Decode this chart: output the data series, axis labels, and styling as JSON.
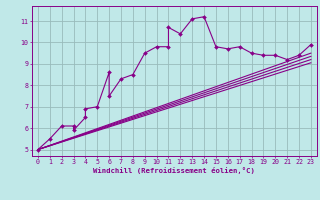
{
  "xlabel": "Windchill (Refroidissement éolien,°C)",
  "xlim": [
    -0.5,
    23.5
  ],
  "ylim": [
    4.7,
    11.7
  ],
  "yticks": [
    5,
    6,
    7,
    8,
    9,
    10,
    11
  ],
  "xticks": [
    0,
    1,
    2,
    3,
    4,
    5,
    6,
    7,
    8,
    9,
    10,
    11,
    12,
    13,
    14,
    15,
    16,
    17,
    18,
    19,
    20,
    21,
    22,
    23
  ],
  "bg_color": "#c0e8e8",
  "line_color": "#880088",
  "grid_color": "#99bbbb",
  "main_x": [
    0,
    1,
    2,
    3,
    3,
    4,
    4,
    5,
    6,
    6,
    7,
    8,
    9,
    10,
    11,
    11,
    12,
    13,
    14,
    15,
    16,
    17,
    18,
    19,
    20,
    21,
    22,
    23
  ],
  "main_y": [
    5.0,
    5.5,
    6.1,
    6.1,
    5.9,
    6.5,
    6.9,
    7.0,
    8.6,
    7.5,
    8.3,
    8.5,
    9.5,
    9.8,
    9.8,
    10.7,
    10.4,
    11.1,
    11.2,
    9.8,
    9.7,
    9.8,
    9.5,
    9.4,
    9.4,
    9.2,
    9.4,
    9.9
  ],
  "regression_lines": [
    {
      "x0": 0,
      "y0": 5.0,
      "x1": 23,
      "y1": 9.05
    },
    {
      "x0": 0,
      "y0": 5.0,
      "x1": 23,
      "y1": 9.2
    },
    {
      "x0": 0,
      "y0": 5.0,
      "x1": 23,
      "y1": 9.35
    },
    {
      "x0": 0,
      "y0": 5.0,
      "x1": 23,
      "y1": 9.5
    }
  ]
}
